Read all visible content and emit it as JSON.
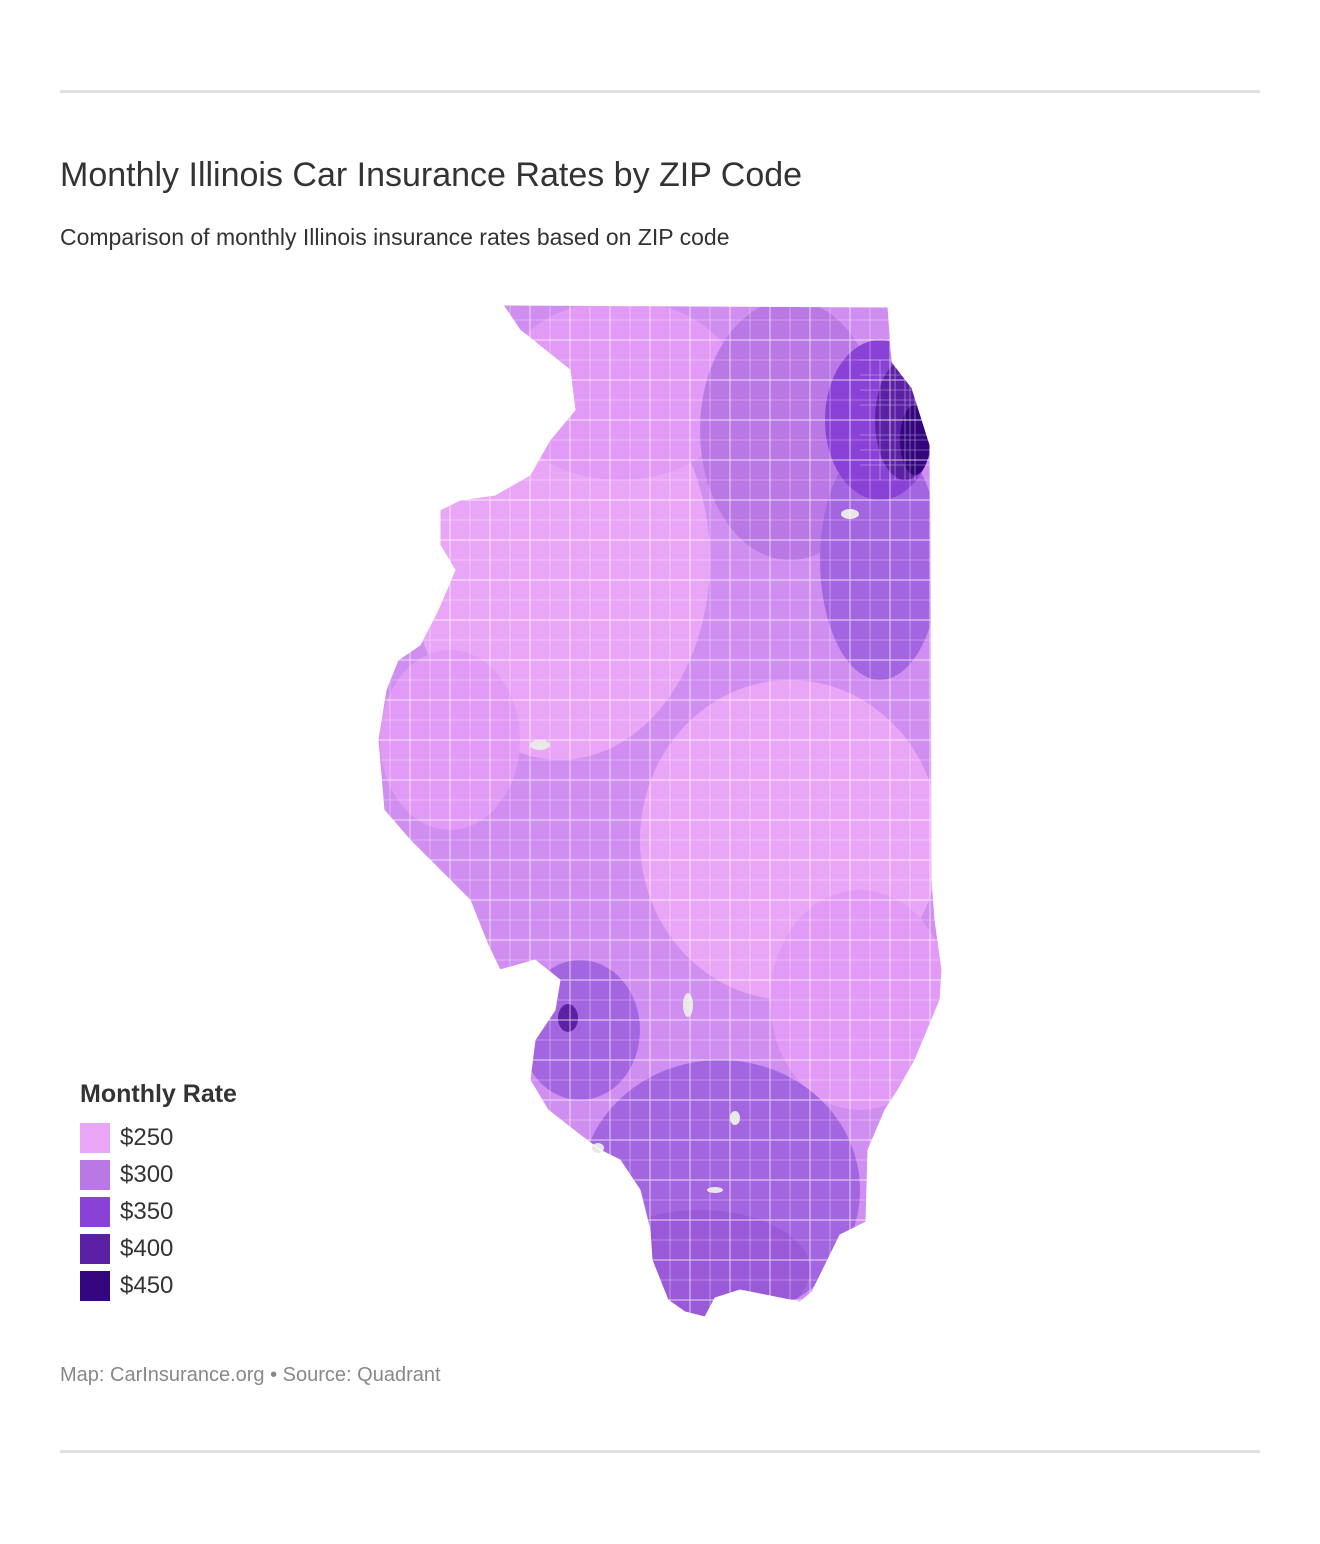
{
  "header": {
    "title": "Monthly Illinois Car Insurance Rates by ZIP Code",
    "subtitle": "Comparison of monthly Illinois insurance rates based on ZIP code"
  },
  "legend": {
    "title": "Monthly Rate",
    "items": [
      {
        "label": "$250",
        "value": 250,
        "color": "#eaa6f6"
      },
      {
        "label": "$300",
        "value": 300,
        "color": "#b978e4"
      },
      {
        "label": "$350",
        "value": 350,
        "color": "#8a42d6"
      },
      {
        "label": "$400",
        "value": 400,
        "color": "#5c20a4"
      },
      {
        "label": "$450",
        "value": 450,
        "color": "#33067e"
      }
    ]
  },
  "map": {
    "region": "Illinois",
    "unit": "ZIP code",
    "background_color": "#ffffff",
    "no_data_color": "#e8e8e8"
  },
  "footer": {
    "credit": "Map: CarInsurance.org • Source: Quadrant"
  }
}
